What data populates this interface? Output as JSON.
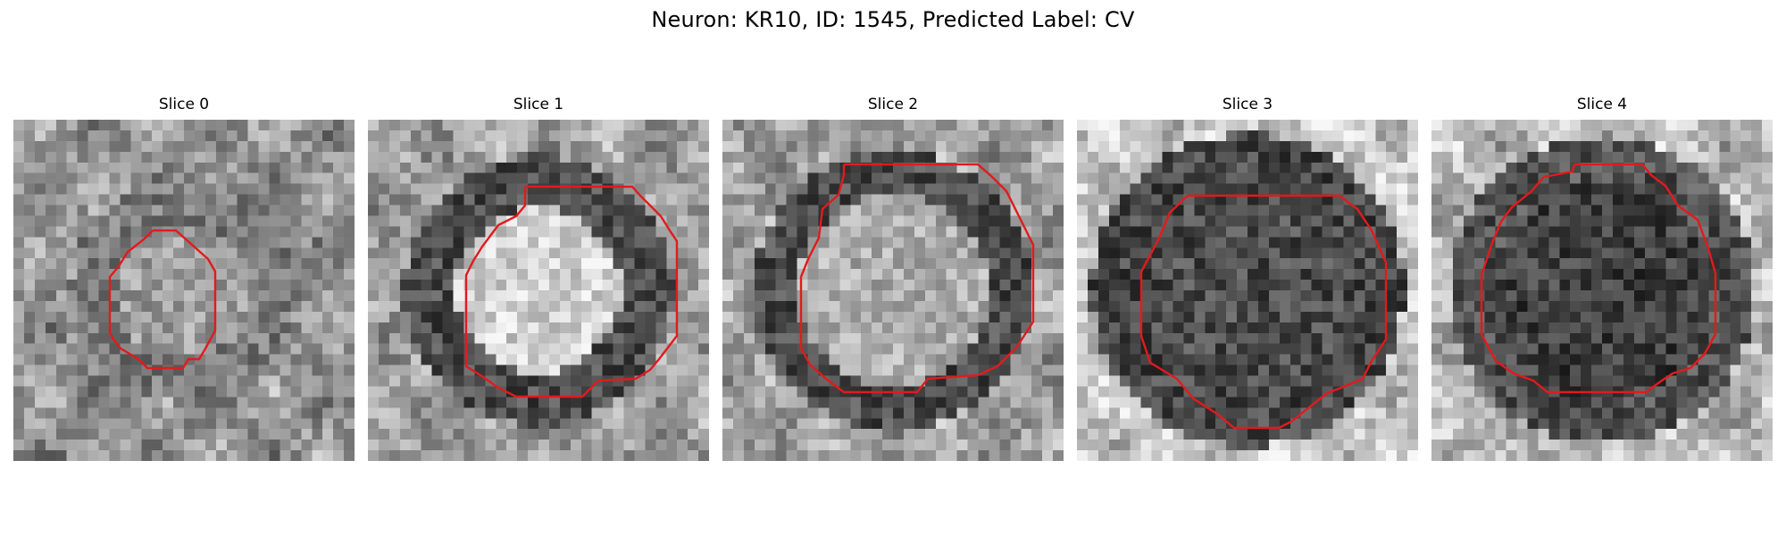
{
  "title": "Neuron: KR10, ID: 1545, Predicted Label: CV",
  "contour_color": "#e31a1c",
  "colormap": "gray",
  "panels": [
    {
      "label": "Slice 0"
    },
    {
      "label": "Slice 1"
    },
    {
      "label": "Slice 2"
    },
    {
      "label": "Slice 3"
    },
    {
      "label": "Slice 4"
    }
  ]
}
